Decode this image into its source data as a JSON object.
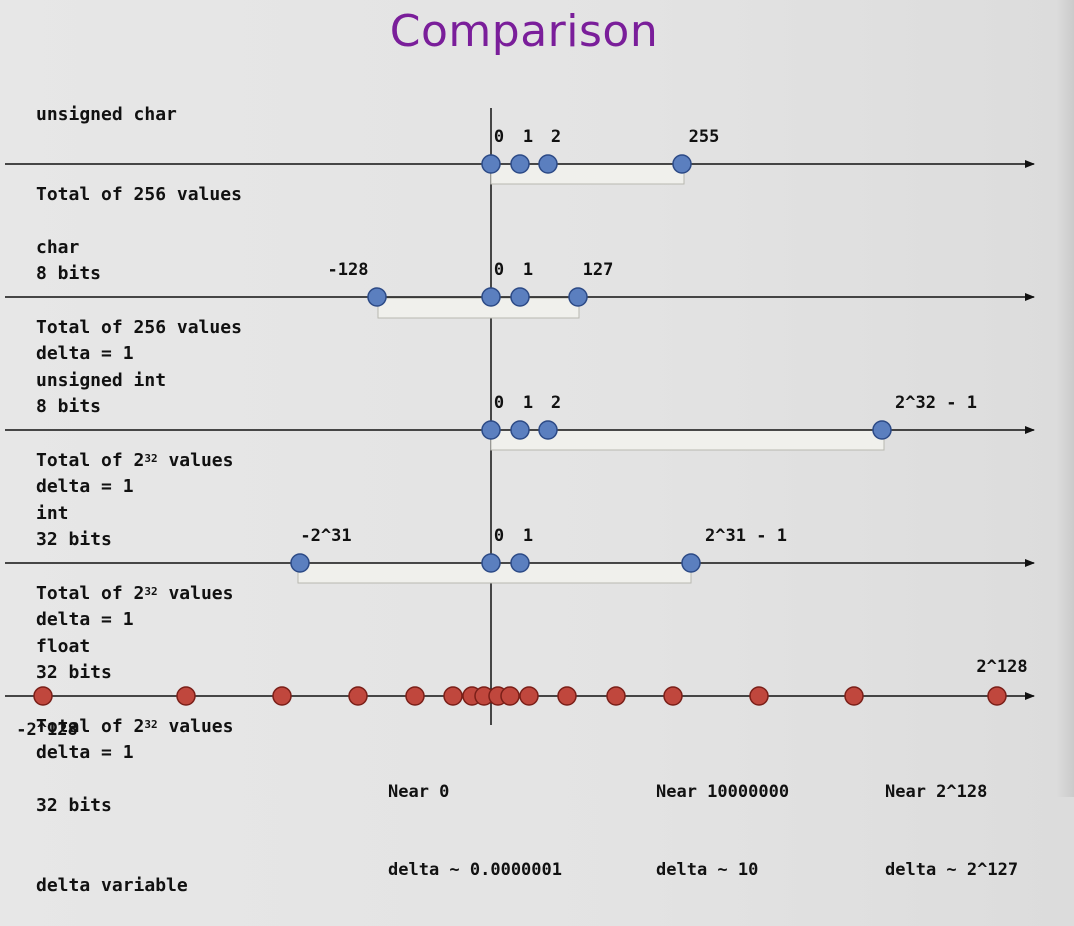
{
  "title": "Comparison",
  "sections": [
    {
      "id": "unsigned-char",
      "lines": [
        "unsigned char",
        "Total of 256 values",
        "8 bits",
        "delta = 1"
      ],
      "tick_labels": [
        {
          "text": "0",
          "x": 498
        },
        {
          "text": "1",
          "x": 528
        },
        {
          "text": "2",
          "x": 556
        },
        {
          "text": "255",
          "x": 704
        }
      ]
    },
    {
      "id": "char",
      "lines": [
        "char",
        "Total of 256 values",
        "8 bits",
        "delta = 1"
      ],
      "tick_labels": [
        {
          "text": "-128",
          "x": 348
        },
        {
          "text": "0",
          "x": 498
        },
        {
          "text": "1",
          "x": 528
        },
        {
          "text": "127",
          "x": 598
        }
      ]
    },
    {
      "id": "unsigned-int",
      "lines": [
        "unsigned int",
        "Total of 2",
        "32 bits",
        "delta = 1"
      ],
      "exponent": "32",
      "exponent_suffix": " values",
      "tick_labels": [
        {
          "text": "0",
          "x": 498
        },
        {
          "text": "1",
          "x": 528
        },
        {
          "text": "2",
          "x": 556
        },
        {
          "text": "2^32 - 1",
          "x": 936
        }
      ]
    },
    {
      "id": "int",
      "lines": [
        "int",
        "Total of 2",
        "32 bits",
        "delta = 1"
      ],
      "exponent": "32",
      "exponent_suffix": " values",
      "tick_labels": [
        {
          "text": "-2^31",
          "x": 326
        },
        {
          "text": "0",
          "x": 498
        },
        {
          "text": "1",
          "x": 528
        },
        {
          "text": "2^31 - 1",
          "x": 746
        }
      ]
    },
    {
      "id": "float",
      "lines": [
        "float",
        "Total of 2",
        "32 bits",
        "delta variable"
      ],
      "exponent": "32",
      "exponent_suffix": " values",
      "tick_labels": [
        {
          "text": "2^128",
          "x": 1002
        }
      ],
      "below_label": "-2^128"
    }
  ],
  "notes": [
    {
      "id": "near-zero",
      "line1": "Near 0",
      "line2": "delta ~ 0.0000001"
    },
    {
      "id": "near-ten-million",
      "line1": "Near 10000000",
      "line2": "delta ~ 10"
    },
    {
      "id": "near-max",
      "line1": "Near 2^128",
      "line2": "delta ~ 2^127"
    }
  ],
  "colors": {
    "title": "#7a1e9a",
    "int_point": "#5b7fbf",
    "float_point": "#c0473d",
    "axis": "#111111"
  }
}
